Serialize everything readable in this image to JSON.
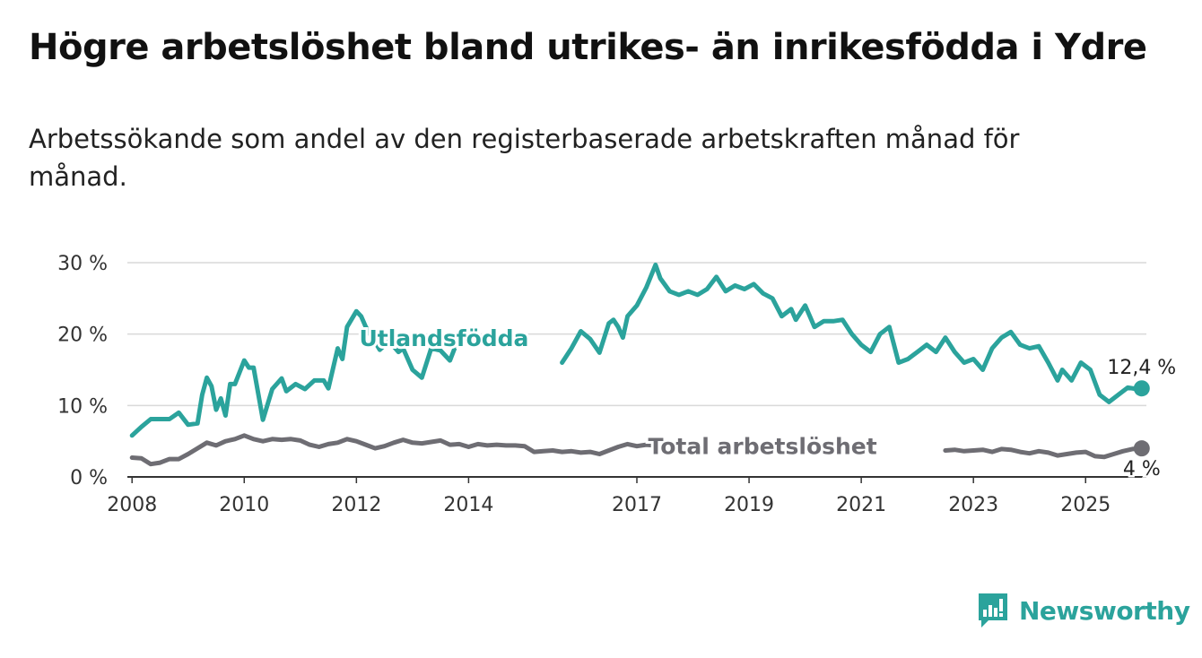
{
  "title": "Högre arbetslöshet bland utrikes- än inrikesfödda i Ydre",
  "subtitle": "Arbetssökande som andel av den registerbaserade arbetskraften månad för månad.",
  "brand": {
    "name": "Newsworthy",
    "icon": "newsworthy-chart-bubble-icon",
    "color": "#2ba39c"
  },
  "chart_data": {
    "type": "line",
    "title": "Högre arbetslöshet bland utrikes- än inrikesfödda i Ydre",
    "subtitle": "Arbetssökande som andel av den registerbaserade arbetskraften månad för månad.",
    "x_ticks": [
      "2008",
      "2010",
      "2012",
      "2014",
      "2017",
      "2019",
      "2021",
      "2023",
      "2025"
    ],
    "y_ticks": [
      "0 %",
      "10 %",
      "20 %",
      "30 %"
    ],
    "ylim": [
      0,
      30
    ],
    "xlim": [
      "2007-12",
      "2026-02"
    ],
    "grid": true,
    "series": [
      {
        "name": "Utlandsfödda",
        "color": "#2ba39c",
        "end_label": "12,4 %",
        "end_value": 12.4,
        "points": [
          [
            "2008-01",
            5.8
          ],
          [
            "2008-03",
            7.0
          ],
          [
            "2008-05",
            8.1
          ],
          [
            "2008-07",
            8.1
          ],
          [
            "2008-09",
            8.1
          ],
          [
            "2008-11",
            9.0
          ],
          [
            "2009-01",
            7.3
          ],
          [
            "2009-03",
            7.5
          ],
          [
            "2009-04",
            11.5
          ],
          [
            "2009-05",
            13.9
          ],
          [
            "2009-06",
            12.7
          ],
          [
            "2009-07",
            9.4
          ],
          [
            "2009-08",
            11.0
          ],
          [
            "2009-09",
            8.6
          ],
          [
            "2009-10",
            13.0
          ],
          [
            "2009-11",
            13.0
          ],
          [
            "2010-01",
            16.3
          ],
          [
            "2010-02",
            15.3
          ],
          [
            "2010-03",
            15.3
          ],
          [
            "2010-05",
            8.0
          ],
          [
            "2010-07",
            12.3
          ],
          [
            "2010-09",
            13.8
          ],
          [
            "2010-10",
            12.0
          ],
          [
            "2010-12",
            13.0
          ],
          [
            "2011-02",
            12.3
          ],
          [
            "2011-04",
            13.5
          ],
          [
            "2011-06",
            13.5
          ],
          [
            "2011-07",
            12.4
          ],
          [
            "2011-09",
            18.0
          ],
          [
            "2011-10",
            16.5
          ],
          [
            "2011-11",
            21.0
          ],
          [
            "2012-01",
            23.2
          ],
          [
            "2012-02",
            22.5
          ],
          [
            "2012-03",
            21.0
          ],
          [
            "2012-06",
            17.8
          ],
          [
            "2012-08",
            19.0
          ],
          [
            "2012-10",
            17.5
          ],
          [
            "2012-11",
            18.0
          ],
          [
            "2013-01",
            15.0
          ],
          [
            "2013-03",
            13.9
          ],
          [
            "2013-05",
            18.0
          ],
          [
            "2013-07",
            17.7
          ],
          [
            "2013-09",
            16.3
          ],
          [
            "2013-10",
            18.0
          ],
          [
            "2015-09",
            16.0
          ],
          [
            "2015-11",
            18.0
          ],
          [
            "2016-01",
            20.4
          ],
          [
            "2016-03",
            19.3
          ],
          [
            "2016-05",
            17.4
          ],
          [
            "2016-07",
            21.5
          ],
          [
            "2016-08",
            22.0
          ],
          [
            "2016-09",
            21.0
          ],
          [
            "2016-10",
            19.5
          ],
          [
            "2016-11",
            22.5
          ],
          [
            "2017-01",
            24.0
          ],
          [
            "2017-03",
            26.5
          ],
          [
            "2017-05",
            29.7
          ],
          [
            "2017-06",
            27.8
          ],
          [
            "2017-08",
            26.0
          ],
          [
            "2017-10",
            25.5
          ],
          [
            "2017-12",
            26.0
          ],
          [
            "2018-02",
            25.5
          ],
          [
            "2018-04",
            26.3
          ],
          [
            "2018-06",
            28.0
          ],
          [
            "2018-08",
            26.0
          ],
          [
            "2018-10",
            26.8
          ],
          [
            "2018-12",
            26.3
          ],
          [
            "2019-02",
            27.0
          ],
          [
            "2019-04",
            25.7
          ],
          [
            "2019-06",
            25.0
          ],
          [
            "2019-08",
            22.5
          ],
          [
            "2019-10",
            23.5
          ],
          [
            "2019-11",
            22.0
          ],
          [
            "2020-01",
            24.0
          ],
          [
            "2020-03",
            21.0
          ],
          [
            "2020-05",
            21.8
          ],
          [
            "2020-07",
            21.8
          ],
          [
            "2020-09",
            22.0
          ],
          [
            "2020-11",
            20.0
          ],
          [
            "2021-01",
            18.5
          ],
          [
            "2021-03",
            17.5
          ],
          [
            "2021-05",
            20.0
          ],
          [
            "2021-07",
            21.0
          ],
          [
            "2021-09",
            16.0
          ],
          [
            "2021-11",
            16.5
          ],
          [
            "2022-01",
            17.5
          ],
          [
            "2022-03",
            18.5
          ],
          [
            "2022-05",
            17.5
          ],
          [
            "2022-07",
            19.5
          ],
          [
            "2022-09",
            17.5
          ],
          [
            "2022-11",
            16.0
          ],
          [
            "2023-01",
            16.5
          ],
          [
            "2023-03",
            15.0
          ],
          [
            "2023-05",
            18.0
          ],
          [
            "2023-07",
            19.5
          ],
          [
            "2023-09",
            20.3
          ],
          [
            "2023-11",
            18.5
          ],
          [
            "2024-01",
            18.0
          ],
          [
            "2024-03",
            18.3
          ],
          [
            "2024-05",
            16.0
          ],
          [
            "2024-07",
            13.5
          ],
          [
            "2024-08",
            15.0
          ],
          [
            "2024-10",
            13.5
          ],
          [
            "2024-12",
            16.0
          ],
          [
            "2025-02",
            15.0
          ],
          [
            "2025-04",
            11.5
          ],
          [
            "2025-06",
            10.5
          ],
          [
            "2025-08",
            11.5
          ],
          [
            "2025-10",
            12.5
          ],
          [
            "2025-12",
            12.3
          ],
          [
            "2026-01",
            12.4
          ]
        ]
      },
      {
        "name": "Total arbetslöshet",
        "color": "#6e6d73",
        "end_label": "4 %",
        "end_value": 4.0,
        "points": [
          [
            "2008-01",
            2.7
          ],
          [
            "2008-03",
            2.6
          ],
          [
            "2008-05",
            1.8
          ],
          [
            "2008-07",
            2.0
          ],
          [
            "2008-09",
            2.5
          ],
          [
            "2008-11",
            2.5
          ],
          [
            "2009-01",
            3.2
          ],
          [
            "2009-03",
            4.0
          ],
          [
            "2009-05",
            4.8
          ],
          [
            "2009-07",
            4.4
          ],
          [
            "2009-09",
            5.0
          ],
          [
            "2009-11",
            5.3
          ],
          [
            "2010-01",
            5.8
          ],
          [
            "2010-03",
            5.3
          ],
          [
            "2010-05",
            5.0
          ],
          [
            "2010-07",
            5.3
          ],
          [
            "2010-09",
            5.2
          ],
          [
            "2010-11",
            5.3
          ],
          [
            "2011-01",
            5.1
          ],
          [
            "2011-03",
            4.5
          ],
          [
            "2011-05",
            4.2
          ],
          [
            "2011-07",
            4.6
          ],
          [
            "2011-09",
            4.8
          ],
          [
            "2011-11",
            5.3
          ],
          [
            "2012-01",
            5.0
          ],
          [
            "2012-03",
            4.5
          ],
          [
            "2012-05",
            4.0
          ],
          [
            "2012-07",
            4.3
          ],
          [
            "2012-09",
            4.8
          ],
          [
            "2012-11",
            5.2
          ],
          [
            "2013-01",
            4.8
          ],
          [
            "2013-03",
            4.7
          ],
          [
            "2013-05",
            4.9
          ],
          [
            "2013-07",
            5.1
          ],
          [
            "2013-09",
            4.5
          ],
          [
            "2013-11",
            4.6
          ],
          [
            "2014-01",
            4.2
          ],
          [
            "2014-03",
            4.6
          ],
          [
            "2014-05",
            4.4
          ],
          [
            "2014-07",
            4.5
          ],
          [
            "2014-09",
            4.4
          ],
          [
            "2014-11",
            4.4
          ],
          [
            "2015-01",
            4.3
          ],
          [
            "2015-03",
            3.5
          ],
          [
            "2015-05",
            3.6
          ],
          [
            "2015-07",
            3.7
          ],
          [
            "2015-09",
            3.5
          ],
          [
            "2015-11",
            3.6
          ],
          [
            "2016-01",
            3.4
          ],
          [
            "2016-03",
            3.5
          ],
          [
            "2016-05",
            3.2
          ],
          [
            "2016-07",
            3.7
          ],
          [
            "2016-09",
            4.2
          ],
          [
            "2016-11",
            4.6
          ],
          [
            "2017-01",
            4.3
          ],
          [
            "2017-03",
            4.5
          ],
          [
            "2017-05",
            4.4
          ],
          [
            "2022-07",
            3.7
          ],
          [
            "2022-09",
            3.8
          ],
          [
            "2022-11",
            3.6
          ],
          [
            "2023-01",
            3.7
          ],
          [
            "2023-03",
            3.8
          ],
          [
            "2023-05",
            3.5
          ],
          [
            "2023-07",
            3.9
          ],
          [
            "2023-09",
            3.8
          ],
          [
            "2023-11",
            3.5
          ],
          [
            "2024-01",
            3.3
          ],
          [
            "2024-03",
            3.6
          ],
          [
            "2024-05",
            3.4
          ],
          [
            "2024-07",
            3.0
          ],
          [
            "2024-09",
            3.2
          ],
          [
            "2024-11",
            3.4
          ],
          [
            "2025-01",
            3.5
          ],
          [
            "2025-03",
            2.9
          ],
          [
            "2025-05",
            2.8
          ],
          [
            "2025-07",
            3.2
          ],
          [
            "2025-09",
            3.6
          ],
          [
            "2025-11",
            3.9
          ],
          [
            "2026-01",
            4.0
          ]
        ]
      }
    ]
  }
}
